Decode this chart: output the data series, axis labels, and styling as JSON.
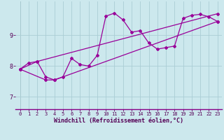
{
  "xlabel": "Windchill (Refroidissement éolien,°C)",
  "bg_color": "#cce8ed",
  "line_color": "#990099",
  "grid_color": "#aacdd5",
  "xlim": [
    -0.5,
    23.5
  ],
  "ylim": [
    6.6,
    10.1
  ],
  "yticks": [
    7,
    8,
    9
  ],
  "xticks": [
    0,
    1,
    2,
    3,
    4,
    5,
    6,
    7,
    8,
    9,
    10,
    11,
    12,
    13,
    14,
    15,
    16,
    17,
    18,
    19,
    20,
    21,
    22,
    23
  ],
  "line1_x": [
    0,
    1,
    2,
    3,
    4,
    5,
    6,
    7,
    8,
    9,
    10,
    11,
    12,
    13,
    14,
    15,
    16,
    17,
    18,
    19,
    20,
    21,
    22,
    23
  ],
  "line1_y": [
    7.9,
    8.1,
    8.15,
    7.65,
    7.55,
    7.65,
    8.25,
    8.05,
    8.0,
    8.35,
    9.62,
    9.72,
    9.5,
    9.1,
    9.15,
    8.75,
    8.55,
    8.6,
    8.65,
    9.55,
    9.65,
    9.68,
    9.6,
    9.45
  ],
  "line2_x": [
    0,
    2,
    23
  ],
  "line2_y": [
    7.9,
    8.15,
    9.7
  ],
  "line3_x": [
    0,
    3,
    4,
    23
  ],
  "line3_y": [
    7.9,
    7.55,
    7.55,
    9.45
  ],
  "marker": "D",
  "markersize": 2.0,
  "linewidth": 0.9,
  "tick_fontsize": 5.0,
  "xlabel_fontsize": 6.0
}
